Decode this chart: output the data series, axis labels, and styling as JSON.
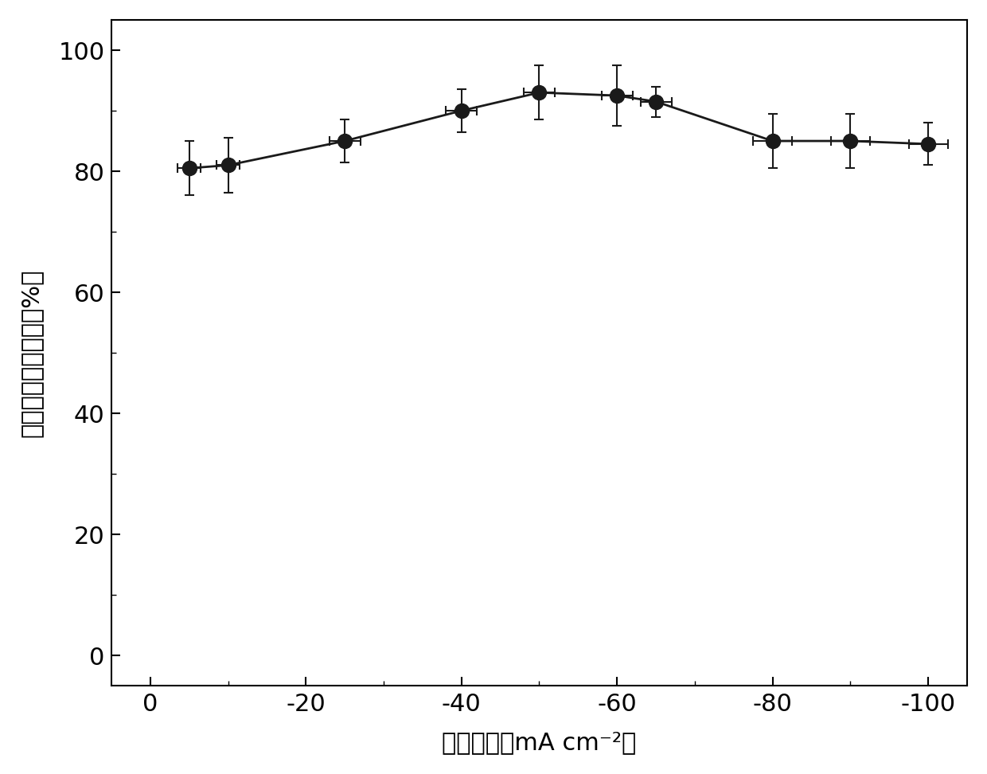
{
  "x": [
    -5,
    -10,
    -25,
    -40,
    -50,
    -60,
    -65,
    -80,
    -90,
    -100
  ],
  "y": [
    80.5,
    81.0,
    85.0,
    90.0,
    93.0,
    92.5,
    91.5,
    85.0,
    85.0,
    84.5
  ],
  "yerr": [
    4.5,
    4.5,
    3.5,
    3.5,
    4.5,
    5.0,
    2.5,
    4.5,
    4.5,
    3.5
  ],
  "xerr": [
    1.5,
    1.5,
    2.0,
    2.0,
    2.0,
    2.0,
    2.0,
    2.5,
    2.5,
    2.5
  ],
  "xlabel_cn": "电流密度",
  "xlabel_en": "（mA cm⁻²）",
  "ylabel_chars": [
    "甲",
    "酸",
    "的",
    "法",
    "拉",
    "第",
    "效",
    "率",
    "（%）"
  ],
  "xlim": [
    5,
    -105
  ],
  "ylim": [
    -5,
    105
  ],
  "xticks": [
    0,
    -20,
    -40,
    -60,
    -80,
    -100
  ],
  "yticks": [
    0,
    20,
    40,
    60,
    80,
    100
  ],
  "marker_color": "#1a1a1a",
  "line_color": "#1a1a1a",
  "marker_size": 13,
  "line_width": 2.0,
  "capsize": 4,
  "elinewidth": 1.5,
  "fig_width": 12.4,
  "fig_height": 9.72,
  "dpi": 100,
  "tick_fontsize": 22,
  "label_fontsize": 22
}
